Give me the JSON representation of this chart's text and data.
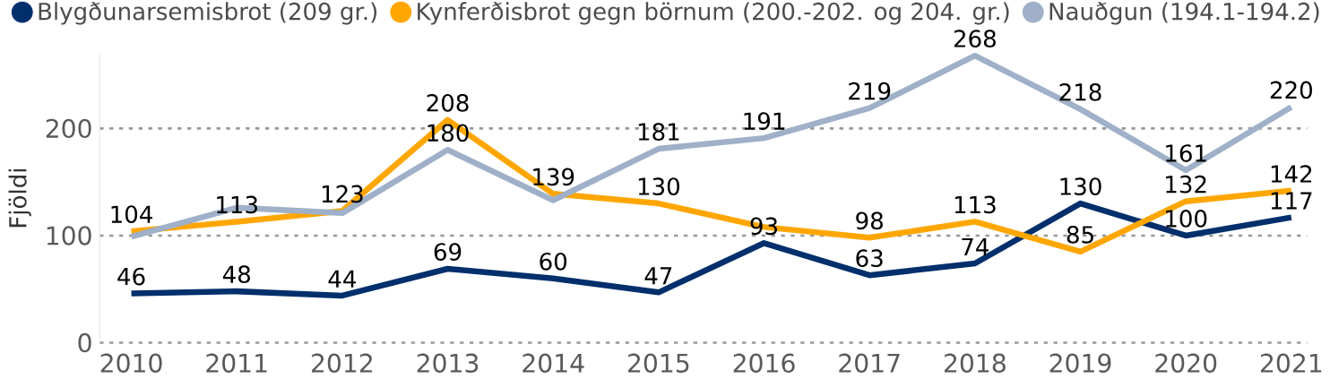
{
  "chart_data": {
    "type": "line",
    "ylabel": "Fjöldi",
    "categories": [
      "2010",
      "2011",
      "2012",
      "2013",
      "2014",
      "2015",
      "2016",
      "2017",
      "2018",
      "2019",
      "2020",
      "2021"
    ],
    "series": [
      {
        "name": "Blygðunarsemisbrot (209 gr.)",
        "color": "#002f6c",
        "values": [
          46,
          48,
          44,
          69,
          60,
          47,
          93,
          63,
          74,
          130,
          100,
          117
        ],
        "value_labels": [
          "46",
          "48",
          "44",
          "69",
          "60",
          "47",
          "93",
          "63",
          "74",
          "130",
          "100",
          "117"
        ]
      },
      {
        "name": "Kynferðisbrot gegn börnum (200.-202. og 204. gr.)",
        "color": "#ffa600",
        "values": [
          104,
          113,
          123,
          208,
          139,
          130,
          108,
          98,
          113,
          85,
          132,
          142
        ],
        "value_labels": [
          "104",
          "113",
          "123",
          "208",
          "139",
          "130",
          null,
          "98",
          "113",
          "85",
          "132",
          "142"
        ]
      },
      {
        "name": "Nauðgun (194.1-194.2)",
        "color": "#9fb0c8",
        "values": [
          99,
          126,
          121,
          180,
          133,
          181,
          191,
          219,
          268,
          218,
          161,
          220
        ],
        "value_labels": [
          null,
          null,
          null,
          "180",
          null,
          "181",
          "191",
          "219",
          "268",
          "218",
          "161",
          "220"
        ]
      }
    ],
    "ylim": [
      0,
      270
    ],
    "yticks": [
      0,
      100,
      200
    ],
    "grid": "y",
    "legend": "top left",
    "marker": "none",
    "line_style": "solid"
  }
}
